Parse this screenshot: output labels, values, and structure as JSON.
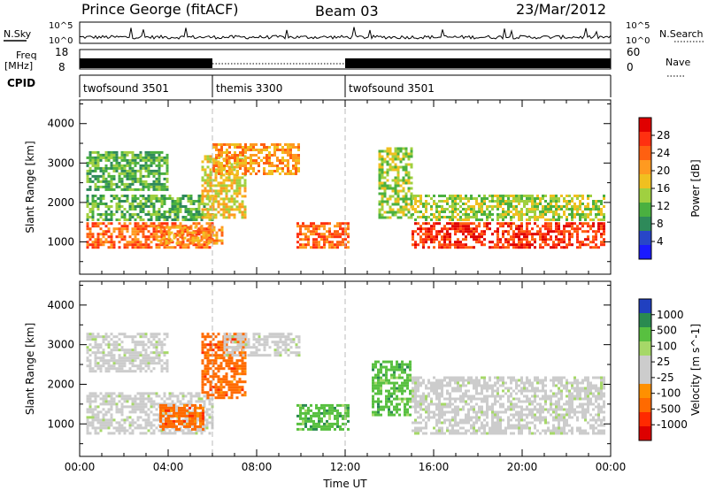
{
  "header": {
    "site": "Prince George (fitACF)",
    "beam": "Beam 03",
    "date": "23/Mar/2012"
  },
  "top_panels": {
    "nsky_label": "N.Sky",
    "nsky_ticks": [
      "10^5",
      "10^0"
    ],
    "nsearch_ticks": [
      "10^5",
      "10^0"
    ],
    "nsearch_label": "N.Search",
    "freq_label_1": "Freq",
    "freq_label_2": "[MHz]",
    "freq_ticks": [
      "18",
      "8"
    ],
    "nave_ticks": [
      "60",
      "0"
    ],
    "nave_label": "Nave",
    "cpid_label": "CPID"
  },
  "cpid_segments": [
    {
      "start": 0,
      "end": 6,
      "label": "twofsound 3501"
    },
    {
      "start": 6,
      "end": 12,
      "label": "themis 3300"
    },
    {
      "start": 12,
      "end": 24,
      "label": "twofsound 3501"
    }
  ],
  "colors": {
    "power": [
      "#1a1aff",
      "#2846c8",
      "#2e8a5a",
      "#4ab040",
      "#a0d040",
      "#f0c020",
      "#ff9a20",
      "#ff6010",
      "#ff3010",
      "#e00000"
    ],
    "velocity": [
      "#2040c0",
      "#2a8a50",
      "#58c040",
      "#a6d868",
      "#cccccc",
      "#cccccc",
      "#ff9000",
      "#ff6a00",
      "#ff2a00",
      "#dd0000"
    ]
  },
  "chart_data": [
    {
      "type": "heatmap",
      "title": "",
      "xlabel": "Time UT",
      "ylabel": "Slant Range [km]",
      "xlim": [
        0,
        24
      ],
      "ylim": [
        180,
        4600
      ],
      "xticks": [
        0,
        4,
        8,
        12,
        16,
        20,
        24
      ],
      "xtick_labels": [
        "00:00",
        "04:00",
        "08:00",
        "12:00",
        "16:00",
        "20:00",
        "00:00"
      ],
      "yticks": [
        1000,
        2000,
        3000,
        4000
      ],
      "colorbar_label": "Power [dB]",
      "colorbar_ticks": [
        4,
        8,
        12,
        16,
        20,
        24,
        28
      ],
      "colorbar_range": [
        0,
        32
      ],
      "echo_regions": [
        {
          "t0": 0.3,
          "t1": 6.0,
          "r0": 800,
          "r1": 1500,
          "value": 26
        },
        {
          "t0": 0.3,
          "t1": 6.0,
          "r0": 1500,
          "r1": 2200,
          "value": 12
        },
        {
          "t0": 0.3,
          "t1": 4.0,
          "r0": 2300,
          "r1": 3300,
          "value": 12
        },
        {
          "t0": 3.5,
          "t1": 6.5,
          "r0": 900,
          "r1": 1400,
          "value": 22
        },
        {
          "t0": 5.5,
          "t1": 7.5,
          "r0": 1600,
          "r1": 3200,
          "value": 18
        },
        {
          "t0": 6.0,
          "t1": 10.0,
          "r0": 2700,
          "r1": 3500,
          "value": 20
        },
        {
          "t0": 9.8,
          "t1": 12.2,
          "r0": 800,
          "r1": 1500,
          "value": 24
        },
        {
          "t0": 13.5,
          "t1": 15.0,
          "r0": 1600,
          "r1": 3400,
          "value": 14
        },
        {
          "t0": 15.0,
          "t1": 23.8,
          "r0": 800,
          "r1": 1500,
          "value": 28
        },
        {
          "t0": 15.0,
          "t1": 23.8,
          "r0": 1500,
          "r1": 2200,
          "value": 14
        }
      ]
    },
    {
      "type": "heatmap",
      "title": "",
      "xlabel": "Time UT",
      "ylabel": "Slant Range [km]",
      "xlim": [
        0,
        24
      ],
      "ylim": [
        180,
        4600
      ],
      "xticks": [
        0,
        4,
        8,
        12,
        16,
        20,
        24
      ],
      "xtick_labels": [
        "00:00",
        "04:00",
        "08:00",
        "12:00",
        "16:00",
        "20:00",
        "00:00"
      ],
      "yticks": [
        1000,
        2000,
        3000,
        4000
      ],
      "colorbar_label": "Velocity [m s^-1]",
      "colorbar_ticks": [
        1000,
        500,
        100,
        25,
        -25,
        -100,
        -500,
        -1000
      ],
      "echo_regions": [
        {
          "t0": 0.3,
          "t1": 6.0,
          "r0": 700,
          "r1": 1800,
          "value": 0
        },
        {
          "t0": 0.3,
          "t1": 4.0,
          "r0": 2300,
          "r1": 3300,
          "value": 0
        },
        {
          "t0": 3.6,
          "t1": 5.6,
          "r0": 800,
          "r1": 1500,
          "value": -200
        },
        {
          "t0": 5.5,
          "t1": 7.5,
          "r0": 1600,
          "r1": 3300,
          "value": -150
        },
        {
          "t0": 6.5,
          "t1": 10.0,
          "r0": 2700,
          "r1": 3300,
          "value": 0
        },
        {
          "t0": 9.8,
          "t1": 12.2,
          "r0": 800,
          "r1": 1500,
          "value": 300
        },
        {
          "t0": 13.2,
          "t1": 15.0,
          "r0": 1200,
          "r1": 2600,
          "value": 100
        },
        {
          "t0": 15.0,
          "t1": 23.8,
          "r0": 700,
          "r1": 2200,
          "value": 0
        }
      ]
    }
  ]
}
